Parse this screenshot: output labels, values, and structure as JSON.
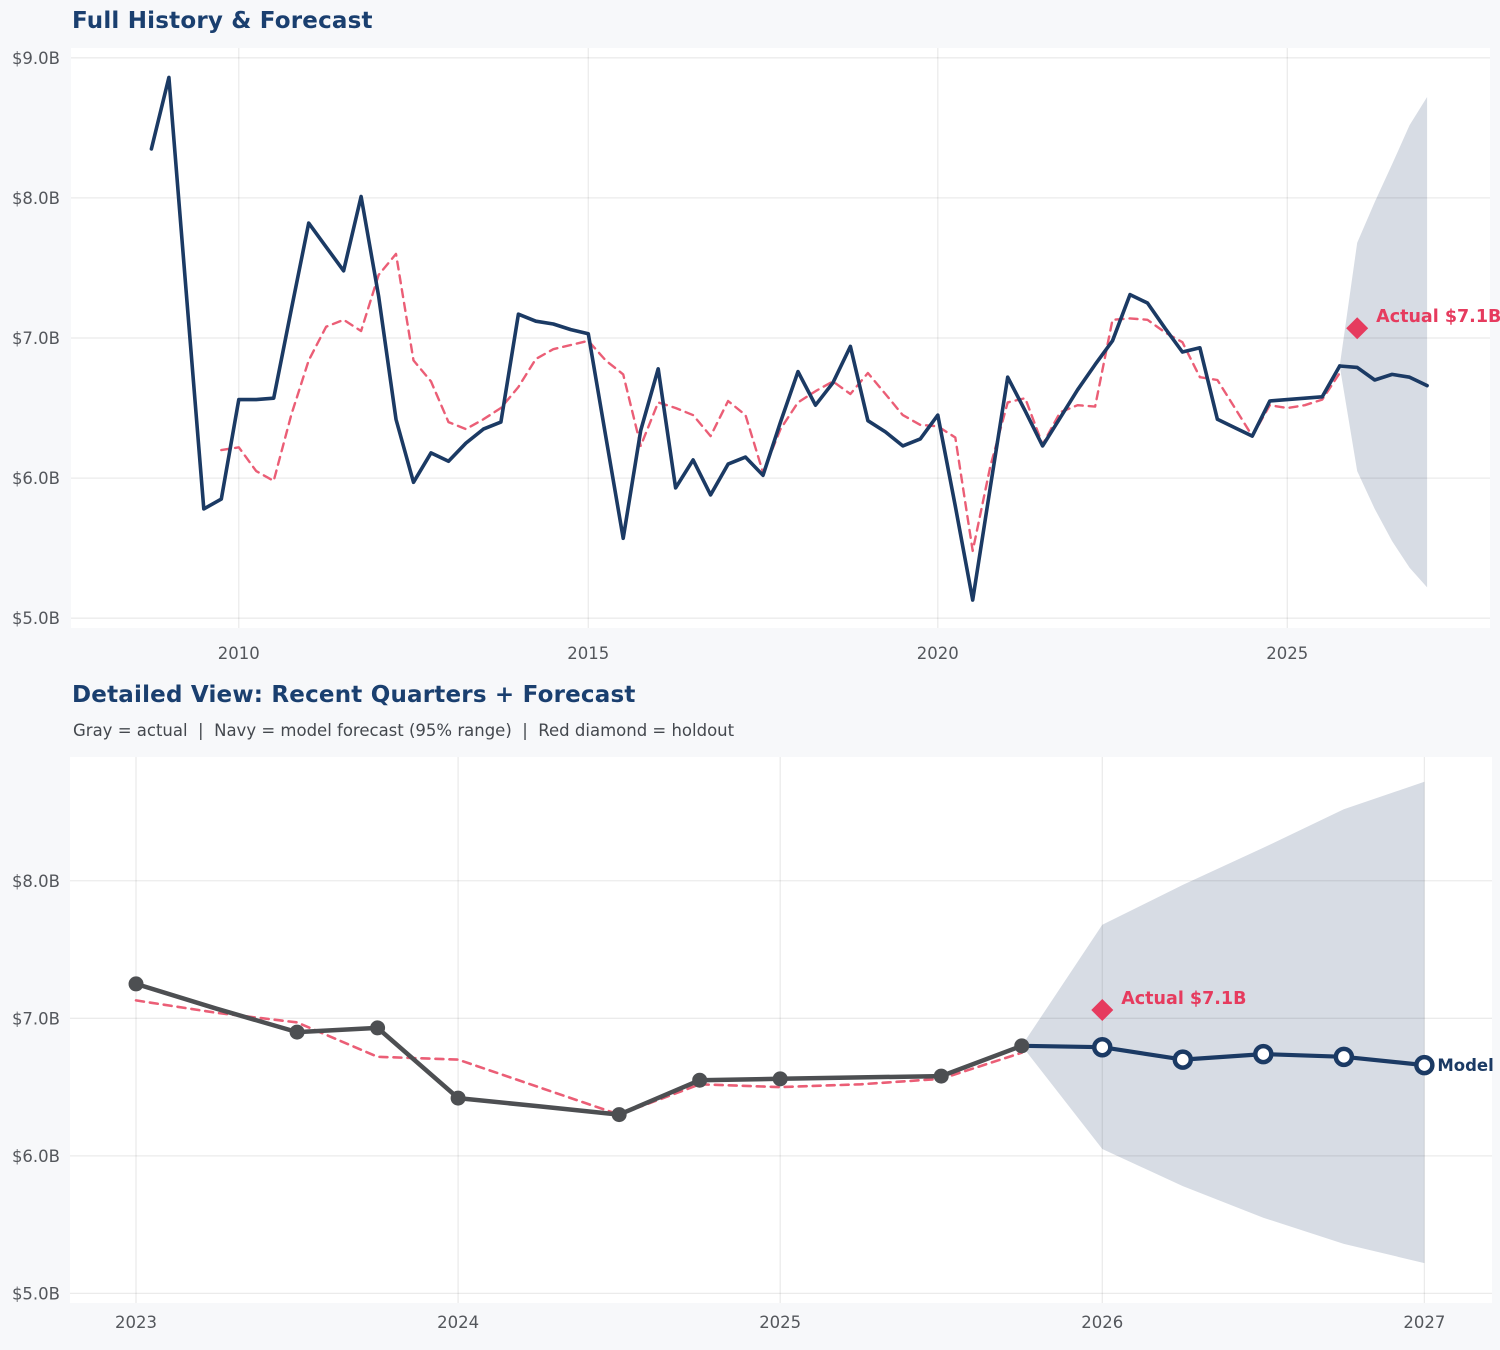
{
  "colors": {
    "navy": "#1b3a64",
    "pink": "#eb5e76",
    "crimson": "#e63b5e",
    "gray_line": "#4d4f52",
    "band": "#d7dce4",
    "title": "#1a3f6f",
    "subtitle": "#44484e",
    "tick": "#54575c",
    "grid": "rgba(0,0,0,0.08)",
    "page_bg": "#f7f8fa",
    "plot_bg": "#ffffff"
  },
  "top_chart": {
    "title": "Full History & Forecast"
  },
  "bottom_chart": {
    "title": "Detailed View: Recent Quarters + Forecast",
    "subtitle": "Gray = actual  |  Navy = model forecast (95% range)  |  Red diamond = holdout"
  },
  "chart_data": [
    {
      "id": "full-history",
      "type": "line",
      "title": "Full History & Forecast",
      "xlabel": "",
      "ylabel": "",
      "grid": true,
      "x_range": [
        2007.6,
        2027.9
      ],
      "y_range": [
        4.93,
        9.07
      ],
      "x_ticks": [
        2010,
        2015,
        2020,
        2025
      ],
      "x_tick_labels": [
        "2010",
        "2015",
        "2020",
        "2025"
      ],
      "y_ticks": [
        9.0,
        8.0,
        7.0,
        6.0,
        5.0
      ],
      "y_tick_labels": [
        "$9.0B",
        "$8.0B",
        "$7.0B",
        "$6.0B",
        "$5.0B"
      ],
      "band": {
        "name": "forecast-95-range",
        "color": "#d7dce4",
        "x": [
          2025.75,
          2026.0,
          2026.25,
          2026.5,
          2026.75,
          2027.0
        ],
        "upper": [
          6.8,
          7.68,
          7.97,
          8.24,
          8.52,
          8.72
        ],
        "lower": [
          6.8,
          6.05,
          5.78,
          5.55,
          5.36,
          5.22
        ]
      },
      "series": [
        {
          "name": "fitted",
          "style": "dashed",
          "color": "#eb5e76",
          "width": 2.4,
          "x": [
            2009.75,
            2010,
            2010.25,
            2010.5,
            2010.75,
            2011,
            2011.25,
            2011.5,
            2011.75,
            2012,
            2012.25,
            2012.5,
            2012.75,
            2013,
            2013.25,
            2013.5,
            2013.75,
            2014,
            2014.25,
            2014.5,
            2014.75,
            2015,
            2015.25,
            2015.5,
            2015.75,
            2016,
            2016.25,
            2016.5,
            2016.75,
            2017,
            2017.25,
            2017.5,
            2017.75,
            2018,
            2018.25,
            2018.5,
            2018.75,
            2019,
            2019.25,
            2019.5,
            2019.75,
            2020,
            2020.25,
            2020.5,
            2020.75,
            2021,
            2021.25,
            2021.5,
            2021.75,
            2022,
            2022.25,
            2022.5,
            2022.75,
            2023,
            2023.25,
            2023.5,
            2023.75,
            2024,
            2024.25,
            2024.5,
            2024.75,
            2025,
            2025.25,
            2025.5,
            2025.75
          ],
          "y": [
            6.2,
            6.22,
            6.05,
            5.98,
            6.45,
            6.84,
            7.08,
            7.13,
            7.05,
            7.45,
            7.6,
            6.84,
            6.69,
            6.4,
            6.35,
            6.42,
            6.5,
            6.65,
            6.85,
            6.92,
            6.95,
            6.98,
            6.84,
            6.74,
            6.23,
            6.54,
            6.5,
            6.45,
            6.3,
            6.55,
            6.45,
            6.04,
            6.35,
            6.54,
            6.62,
            6.69,
            6.6,
            6.75,
            6.6,
            6.45,
            6.38,
            6.37,
            6.29,
            5.48,
            6.08,
            6.54,
            6.57,
            6.24,
            6.47,
            6.52,
            6.51,
            7.13,
            7.14,
            7.13,
            7.04,
            6.97,
            6.72,
            6.7,
            6.5,
            6.3,
            6.52,
            6.5,
            6.52,
            6.56,
            6.75
          ]
        },
        {
          "name": "actual",
          "style": "solid",
          "color": "#1b3a64",
          "width": 3.6,
          "x": [
            2008.75,
            2009,
            2009.25,
            2009.5,
            2009.75,
            2010,
            2010.25,
            2010.5,
            2010.75,
            2011,
            2011.25,
            2011.5,
            2011.75,
            2012,
            2012.25,
            2012.5,
            2012.75,
            2013,
            2013.25,
            2013.5,
            2013.75,
            2014,
            2014.25,
            2014.5,
            2014.75,
            2015,
            2015.25,
            2015.5,
            2015.75,
            2016,
            2016.25,
            2016.5,
            2016.75,
            2017,
            2017.25,
            2017.5,
            2017.75,
            2018,
            2018.25,
            2018.5,
            2018.75,
            2019,
            2019.25,
            2019.5,
            2019.75,
            2020,
            2020.25,
            2020.5,
            2020.75,
            2021,
            2021.25,
            2021.5,
            2021.75,
            2022,
            2022.25,
            2022.5,
            2022.75,
            2023,
            2023.25,
            2023.5,
            2023.75,
            2024,
            2024.25,
            2024.5,
            2024.75,
            2025,
            2025.25,
            2025.5,
            2025.75
          ],
          "y": [
            8.35,
            8.86,
            7.32,
            5.78,
            5.85,
            6.56,
            6.56,
            6.57,
            7.2,
            7.82,
            7.65,
            7.48,
            8.01,
            7.3,
            6.42,
            5.97,
            6.18,
            6.12,
            6.25,
            6.35,
            6.4,
            7.17,
            7.12,
            7.1,
            7.06,
            7.03,
            6.3,
            5.57,
            6.34,
            6.78,
            5.93,
            6.13,
            5.88,
            6.1,
            6.15,
            6.02,
            6.4,
            6.76,
            6.52,
            6.68,
            6.94,
            6.41,
            6.33,
            6.23,
            6.28,
            6.45,
            5.8,
            5.13,
            5.93,
            6.72,
            6.48,
            6.23,
            6.43,
            6.63,
            6.81,
            6.98,
            7.31,
            7.25,
            7.07,
            6.9,
            6.93,
            6.42,
            6.36,
            6.3,
            6.55,
            6.56,
            6.57,
            6.58,
            6.8
          ]
        },
        {
          "name": "model-forecast",
          "style": "solid",
          "color": "#1b3a64",
          "width": 3.6,
          "x": [
            2025.75,
            2026.0,
            2026.25,
            2026.5,
            2026.75,
            2027.0
          ],
          "y": [
            6.8,
            6.79,
            6.7,
            6.74,
            6.72,
            6.66
          ]
        }
      ],
      "annotations": [
        {
          "type": "diamond",
          "label": "Actual $7.1B",
          "x": 2026.0,
          "y": 7.07,
          "color": "#e63b5e"
        }
      ]
    },
    {
      "id": "detailed-view",
      "type": "line",
      "title": "Detailed View: Recent Quarters + Forecast",
      "subtitle": "Gray = actual  |  Navy = model forecast (95% range)  |  Red diamond = holdout",
      "xlabel": "",
      "ylabel": "",
      "grid": true,
      "x_range": [
        2022.795,
        2027.21
      ],
      "y_range": [
        4.93,
        8.9
      ],
      "x_ticks": [
        2023,
        2024,
        2025,
        2026,
        2027
      ],
      "x_tick_labels": [
        "2023",
        "2024",
        "2025",
        "2026",
        "2027"
      ],
      "y_ticks": [
        8.0,
        7.0,
        6.0,
        5.0
      ],
      "y_tick_labels": [
        "$8.0B",
        "$7.0B",
        "$6.0B",
        "$5.0B"
      ],
      "band": {
        "name": "forecast-95-range",
        "color": "#d7dce4",
        "x": [
          2025.75,
          2026.0,
          2026.25,
          2026.5,
          2026.75,
          2027.0
        ],
        "upper": [
          6.8,
          7.68,
          7.97,
          8.24,
          8.52,
          8.72
        ],
        "lower": [
          6.8,
          6.05,
          5.78,
          5.55,
          5.36,
          5.22
        ]
      },
      "series": [
        {
          "name": "fitted",
          "style": "dashed",
          "color": "#eb5e76",
          "width": 2.6,
          "x": [
            2023,
            2023.25,
            2023.5,
            2023.75,
            2024,
            2024.25,
            2024.5,
            2024.75,
            2025,
            2025.25,
            2025.5,
            2025.75
          ],
          "y": [
            7.13,
            7.04,
            6.97,
            6.72,
            6.7,
            6.5,
            6.3,
            6.52,
            6.5,
            6.52,
            6.56,
            6.75
          ]
        },
        {
          "name": "actual",
          "style": "solid",
          "color": "#4d4f52",
          "width": 4.5,
          "marker": "dot",
          "marker_size": 7.5,
          "x": [
            2023,
            2023.25,
            2023.5,
            2023.75,
            2024,
            2024.25,
            2024.5,
            2024.75,
            2025,
            2025.25,
            2025.5,
            2025.75
          ],
          "y": [
            7.25,
            7.07,
            6.9,
            6.93,
            6.42,
            6.36,
            6.3,
            6.55,
            6.56,
            6.57,
            6.58,
            6.8
          ],
          "marker_on": [
            1,
            0,
            1,
            1,
            1,
            0,
            1,
            1,
            1,
            0,
            1,
            1
          ]
        },
        {
          "name": "model-forecast",
          "style": "solid",
          "color": "#1b3a64",
          "width": 4.2,
          "marker": "open",
          "marker_size": 8,
          "x": [
            2025.75,
            2026.0,
            2026.25,
            2026.5,
            2026.75,
            2027.0
          ],
          "y": [
            6.8,
            6.79,
            6.7,
            6.74,
            6.72,
            6.66
          ],
          "marker_on": [
            0,
            1,
            1,
            1,
            1,
            1
          ]
        }
      ],
      "annotations": [
        {
          "type": "diamond",
          "label": "Actual $7.1B",
          "x": 2026.0,
          "y": 7.06,
          "color": "#e63b5e"
        },
        {
          "type": "text",
          "label": "Model",
          "x": 2027.0,
          "y": 6.66,
          "color": "#1b3a64"
        }
      ]
    }
  ]
}
